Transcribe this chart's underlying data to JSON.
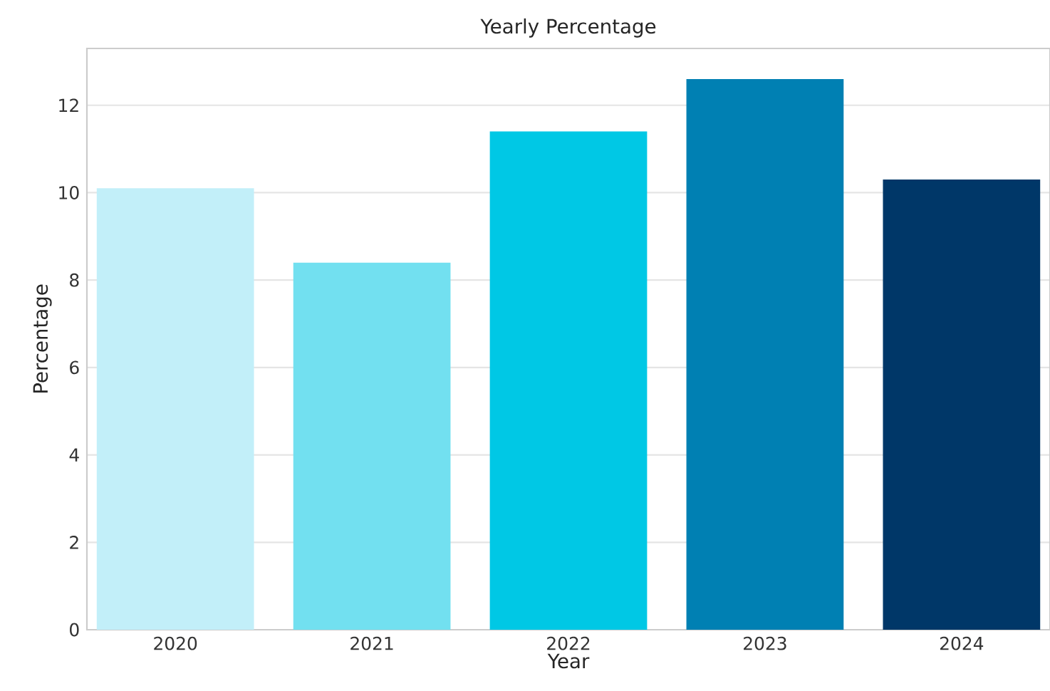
{
  "chart_data": {
    "type": "bar",
    "title": "Yearly Percentage",
    "xlabel": "Year",
    "ylabel": "Percentage",
    "categories": [
      "2020",
      "2021",
      "2022",
      "2023",
      "2024"
    ],
    "values": [
      10.1,
      8.4,
      11.4,
      12.6,
      10.3
    ],
    "colors": [
      "#c2eff9",
      "#72e0f0",
      "#00c8e5",
      "#0080b3",
      "#003768"
    ],
    "ylim": [
      0,
      13.3
    ],
    "yticks": [
      0,
      2,
      4,
      6,
      8,
      10,
      12
    ],
    "grid": "y"
  }
}
